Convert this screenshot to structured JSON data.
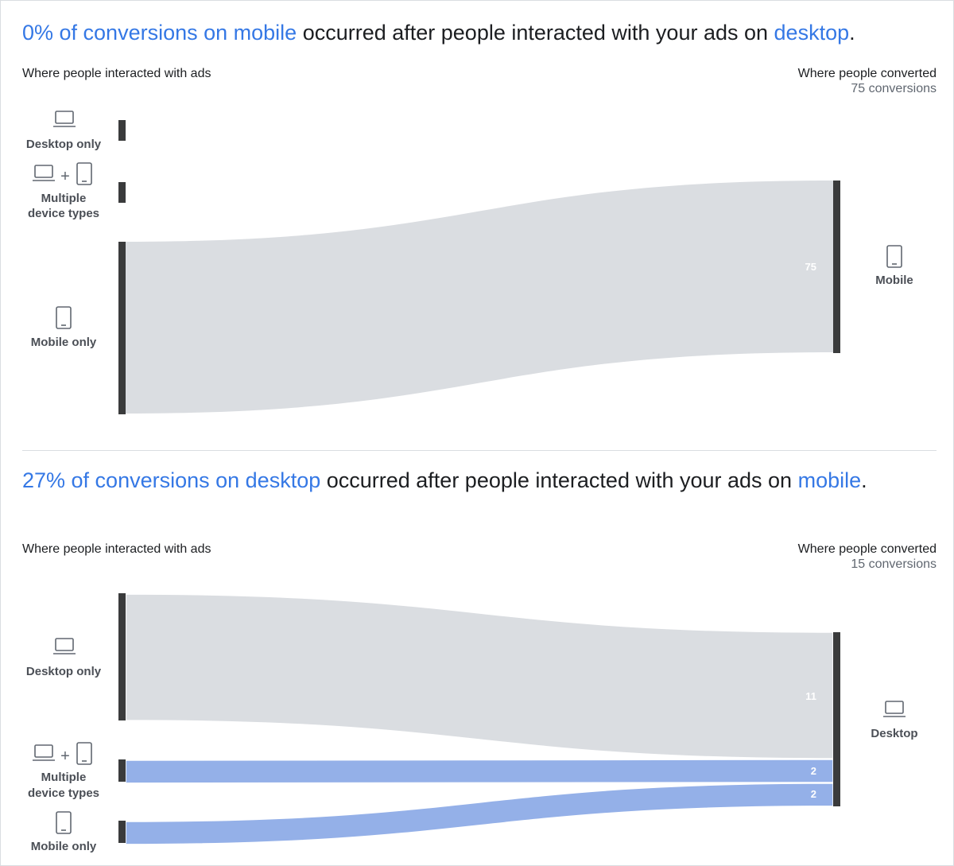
{
  "chart_data": [
    {
      "type": "sankey",
      "headline": {
        "highlight1": "0% of conversions on mobile",
        "middle": " occurred after people interacted with your ads on ",
        "highlight2": "desktop",
        "end": "."
      },
      "left_header": "Where people interacted with ads",
      "right_header": "Where people converted",
      "right_subheader": "75 conversions",
      "sources": [
        {
          "label": "Desktop only",
          "icon": "laptop-icon"
        },
        {
          "label": "Multiple device types",
          "icon": "laptop-plus-phone-icon"
        },
        {
          "label": "Mobile only",
          "icon": "phone-icon"
        }
      ],
      "target": {
        "label": "Mobile",
        "icon": "phone-icon"
      },
      "flows": [
        {
          "from": "Mobile only",
          "to": "Mobile",
          "value": 75,
          "highlight": false
        }
      ],
      "colors": {
        "neutral": "#dadde1",
        "highlight": "#94b0e8",
        "bar": "#3a3b3c"
      }
    },
    {
      "type": "sankey",
      "headline": {
        "highlight1": "27% of conversions on desktop",
        "middle": " occurred after people interacted with your ads on ",
        "highlight2": "mobile",
        "end": "."
      },
      "left_header": "Where people interacted with ads",
      "right_header": "Where people converted",
      "right_subheader": "15 conversions",
      "sources": [
        {
          "label": "Desktop only",
          "icon": "laptop-icon"
        },
        {
          "label": "Multiple device types",
          "icon": "laptop-plus-phone-icon"
        },
        {
          "label": "Mobile only",
          "icon": "phone-icon"
        }
      ],
      "target": {
        "label": "Desktop",
        "icon": "laptop-icon"
      },
      "flows": [
        {
          "from": "Desktop only",
          "to": "Desktop",
          "value": 11,
          "highlight": false
        },
        {
          "from": "Multiple device types",
          "to": "Desktop",
          "value": 2,
          "highlight": true
        },
        {
          "from": "Mobile only",
          "to": "Desktop",
          "value": 2,
          "highlight": true
        }
      ],
      "colors": {
        "neutral": "#dadde1",
        "highlight": "#94b0e8",
        "bar": "#3a3b3c"
      }
    }
  ]
}
